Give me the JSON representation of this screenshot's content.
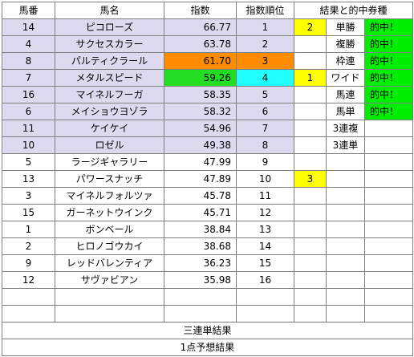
{
  "headers": {
    "umaban": "馬番",
    "bamei": "馬名",
    "shisu": "指数",
    "juni": "指数順位",
    "kekka": "結果と的中券種"
  },
  "rows": [
    {
      "num": "14",
      "name": "ピコローズ",
      "index": "66.77",
      "rank": "1",
      "res": "2",
      "bet": "単勝",
      "hit": "的中！"
    },
    {
      "num": "4",
      "name": "サクセスカラー",
      "index": "63.78",
      "rank": "2",
      "res": "",
      "bet": "複勝",
      "hit": "的中！"
    },
    {
      "num": "8",
      "name": "パルティクラール",
      "index": "61.70",
      "rank": "3",
      "res": "",
      "bet": "枠連",
      "hit": "的中！"
    },
    {
      "num": "7",
      "name": "メタルスピード",
      "index": "59.26",
      "rank": "4",
      "res": "1",
      "bet": "ワイド",
      "hit": "的中！"
    },
    {
      "num": "16",
      "name": "マイネルフーガ",
      "index": "58.35",
      "rank": "5",
      "res": "",
      "bet": "馬連",
      "hit": "的中！"
    },
    {
      "num": "6",
      "name": "メイショウヨゾラ",
      "index": "58.32",
      "rank": "6",
      "res": "",
      "bet": "馬単",
      "hit": "的中！"
    },
    {
      "num": "11",
      "name": "ケイケイ",
      "index": "54.96",
      "rank": "7",
      "res": "",
      "bet": "3連複",
      "hit": ""
    },
    {
      "num": "10",
      "name": "ロゼル",
      "index": "49.38",
      "rank": "8",
      "res": "",
      "bet": "3連単",
      "hit": ""
    },
    {
      "num": "5",
      "name": "ラージギャラリー",
      "index": "47.99",
      "rank": "9",
      "res": "",
      "bet": "",
      "hit": ""
    },
    {
      "num": "13",
      "name": "パワースナッチ",
      "index": "47.89",
      "rank": "10",
      "res": "3",
      "bet": "",
      "hit": ""
    },
    {
      "num": "3",
      "name": "マイネルフォルツァ",
      "index": "45.78",
      "rank": "11",
      "res": "",
      "bet": "",
      "hit": ""
    },
    {
      "num": "15",
      "name": "ガーネットウインク",
      "index": "45.71",
      "rank": "12",
      "res": "",
      "bet": "",
      "hit": ""
    },
    {
      "num": "1",
      "name": "ボンベール",
      "index": "38.84",
      "rank": "13",
      "res": "",
      "bet": "",
      "hit": ""
    },
    {
      "num": "2",
      "name": "ヒロノゴウカイ",
      "index": "38.68",
      "rank": "14",
      "res": "",
      "bet": "",
      "hit": ""
    },
    {
      "num": "9",
      "name": "レッドバレンティア",
      "index": "36.23",
      "rank": "15",
      "res": "",
      "bet": "",
      "hit": ""
    },
    {
      "num": "12",
      "name": "サヴァビアン",
      "index": "35.98",
      "rank": "16",
      "res": "",
      "bet": "",
      "hit": ""
    },
    {
      "num": "",
      "name": "",
      "index": "",
      "rank": "",
      "res": "",
      "bet": "",
      "hit": ""
    },
    {
      "num": "",
      "name": "",
      "index": "",
      "rank": "",
      "res": "",
      "bet": "",
      "hit": ""
    }
  ],
  "footer": {
    "sanrentan": "三連単結果",
    "ittenyosou": "1点予想結果"
  },
  "colors": {
    "top_rows": "#ddd9ee",
    "orange": "#ff8c00",
    "green": "#22dd22",
    "cyan": "#22ffff",
    "yellow": "#ffff00",
    "hit_green": "#00ee00"
  }
}
